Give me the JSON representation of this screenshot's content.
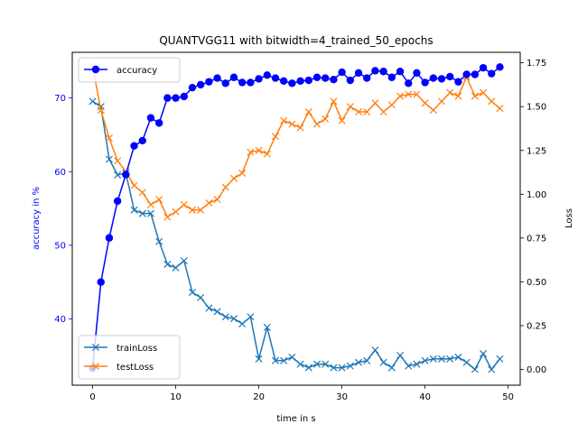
{
  "chart_data": {
    "type": "line",
    "title": "QUANTVGG11 with bitwidth=4_trained_50_epochs",
    "xlabel": "time in s",
    "ylabel_left": "accuracy in %",
    "ylabel_right": "Loss",
    "xlim": [
      -2.45,
      51.45
    ],
    "ylim_left": [
      31.0,
      76.2
    ],
    "ylim_right": [
      -0.09,
      1.81
    ],
    "x_ticks": [
      0,
      10,
      20,
      30,
      40,
      50
    ],
    "y_ticks_left": [
      40,
      50,
      60,
      70
    ],
    "y_ticks_right": [
      0.0,
      0.25,
      0.5,
      0.75,
      1.0,
      1.25,
      1.5,
      1.75
    ],
    "y_tick_labels_right": [
      "0.00",
      "0.25",
      "0.50",
      "0.75",
      "1.00",
      "1.25",
      "1.50",
      "1.75"
    ],
    "colors": {
      "accuracy": "#0000ff",
      "trainLoss": "#1f77b4",
      "testLoss": "#ff7f0e",
      "left_axis": "#0000ff"
    },
    "legend_top_left": [
      "accuracy"
    ],
    "legend_bottom_left": [
      "trainLoss",
      "testLoss"
    ],
    "x": [
      0,
      1,
      2,
      3,
      4,
      5,
      6,
      7,
      8,
      9,
      10,
      11,
      12,
      13,
      14,
      15,
      16,
      17,
      18,
      19,
      20,
      21,
      22,
      23,
      24,
      25,
      26,
      27,
      28,
      29,
      30,
      31,
      32,
      33,
      34,
      35,
      36,
      37,
      38,
      39,
      40,
      41,
      42,
      43,
      44,
      45,
      46,
      47,
      48,
      49
    ],
    "series": [
      {
        "name": "accuracy",
        "axis": "left",
        "marker": "o",
        "values": [
          33.3,
          45.0,
          51.0,
          56.0,
          59.6,
          63.5,
          64.2,
          67.3,
          66.6,
          70.0,
          70.0,
          70.2,
          71.4,
          71.8,
          72.2,
          72.7,
          72.0,
          72.8,
          72.1,
          72.1,
          72.6,
          73.1,
          72.7,
          72.3,
          72.0,
          72.3,
          72.4,
          72.8,
          72.7,
          72.5,
          73.5,
          72.4,
          73.4,
          72.7,
          73.7,
          73.6,
          72.8,
          73.6,
          72.0,
          73.4,
          72.1,
          72.7,
          72.6,
          72.9,
          72.2,
          73.2,
          73.2,
          74.1,
          73.3,
          74.2
        ]
      },
      {
        "name": "trainLoss",
        "axis": "right",
        "marker": "x",
        "values": [
          1.53,
          1.5,
          1.2,
          1.11,
          1.12,
          0.91,
          0.89,
          0.89,
          0.73,
          0.6,
          0.58,
          0.62,
          0.44,
          0.41,
          0.35,
          0.33,
          0.3,
          0.29,
          0.26,
          0.3,
          0.06,
          0.24,
          0.05,
          0.05,
          0.07,
          0.03,
          0.01,
          0.03,
          0.03,
          0.01,
          0.01,
          0.02,
          0.04,
          0.05,
          0.11,
          0.04,
          0.01,
          0.08,
          0.02,
          0.03,
          0.05,
          0.06,
          0.06,
          0.06,
          0.07,
          0.04,
          0.0,
          0.09,
          0.0,
          0.06
        ]
      },
      {
        "name": "testLoss",
        "axis": "right",
        "marker": "x",
        "values": [
          1.73,
          1.48,
          1.32,
          1.19,
          1.13,
          1.05,
          1.01,
          0.94,
          0.97,
          0.87,
          0.9,
          0.94,
          0.91,
          0.91,
          0.95,
          0.97,
          1.04,
          1.09,
          1.12,
          1.24,
          1.25,
          1.23,
          1.33,
          1.42,
          1.4,
          1.38,
          1.47,
          1.4,
          1.43,
          1.53,
          1.42,
          1.5,
          1.47,
          1.47,
          1.52,
          1.47,
          1.51,
          1.56,
          1.57,
          1.57,
          1.52,
          1.48,
          1.53,
          1.58,
          1.56,
          1.67,
          1.56,
          1.58,
          1.53,
          1.49
        ]
      }
    ]
  }
}
